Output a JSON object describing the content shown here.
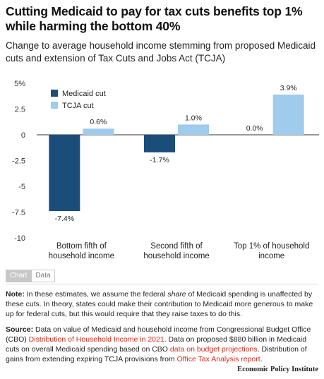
{
  "title": "Cutting Medicaid to pay for tax cuts benefits top 1% while harming the bottom 40%",
  "subtitle": "Change to average household income stemming from proposed Medicaid cuts and extension of Tax Cuts and Jobs Act (TCJA)",
  "chart_data": {
    "type": "bar",
    "categories": [
      [
        "Bottom fifth of",
        "household income"
      ],
      [
        "Second fifth of",
        "household income"
      ],
      [
        "Top 1% of household",
        "income"
      ]
    ],
    "series": [
      {
        "name": "Medicaid cut",
        "color": "#1b4d7a",
        "values": [
          -7.4,
          -1.7,
          0.0
        ],
        "labels": [
          "-7.4%",
          "-1.7%",
          "0.0%"
        ]
      },
      {
        "name": "TCJA cut",
        "color": "#9fcbec",
        "values": [
          0.6,
          1.0,
          3.9
        ],
        "labels": [
          "0.6%",
          "1.0%",
          "3.9%"
        ]
      }
    ],
    "ylim": [
      -10,
      5
    ],
    "yticks": [
      5,
      2.5,
      0,
      -2.5,
      -5,
      -7.5,
      -10
    ],
    "ytick_labels": [
      "5%",
      "2.5",
      "0",
      "-2.5",
      "-5",
      "-7.5",
      "-10"
    ],
    "legend_position": "top-left",
    "grid": false
  },
  "tabs": {
    "chart": "Chart",
    "data": "Data"
  },
  "note": {
    "lead": "Note:",
    "text_before": " In these estimates, we assume the federal ",
    "emphasis": "share",
    "text_after": " of Medicaid spending is unaffected by these cuts. In theory, states could make their contribution to Medicaid more generous to make up for federal cuts, but this would require that they raise taxes to do this."
  },
  "source": {
    "lead": "Source:",
    "text1": " Data on value of Medicaid and household income from Congressional Budget Office (CBO) ",
    "link1": "Distribution of Household Income in 2021",
    "text2": ". Data on proposed $880 billion in Medicaid cuts on overall Medicaid spending based on CBO ",
    "link2": "data on budget projections",
    "text3": ". Distribution of gains from extending expiring TCJA provisions from ",
    "link3": "Office Tax Analysis report",
    "text4": "."
  },
  "brand": "Economic Policy Institute"
}
